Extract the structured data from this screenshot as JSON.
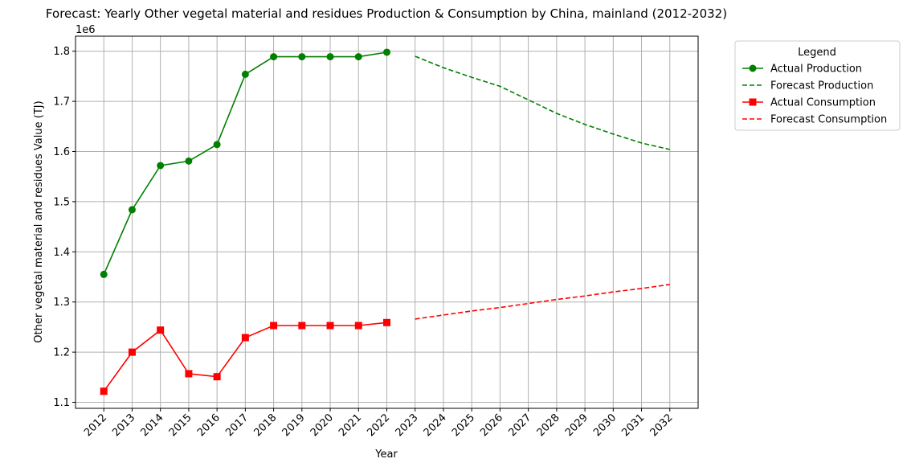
{
  "chart_data": {
    "type": "line",
    "title": "Forecast: Yearly Other vegetal material and residues Production & Consumption by China, mainland (2012-2032)",
    "xlabel": "Year",
    "ylabel": "Other vegetal material and residues Value (TJ)",
    "y_offset_label": "1e6",
    "xlim": [
      2011,
      2033
    ],
    "ylim": [
      1088000,
      1830000
    ],
    "x_ticks": [
      "2012",
      "2013",
      "2014",
      "2015",
      "2016",
      "2017",
      "2018",
      "2019",
      "2020",
      "2021",
      "2022",
      "2023",
      "2024",
      "2025",
      "2026",
      "2027",
      "2028",
      "2029",
      "2030",
      "2031",
      "2032"
    ],
    "y_ticks": [
      {
        "value": 1100000,
        "label": "1.1"
      },
      {
        "value": 1200000,
        "label": "1.2"
      },
      {
        "value": 1300000,
        "label": "1.3"
      },
      {
        "value": 1400000,
        "label": "1.4"
      },
      {
        "value": 1500000,
        "label": "1.5"
      },
      {
        "value": 1600000,
        "label": "1.6"
      },
      {
        "value": 1700000,
        "label": "1.7"
      },
      {
        "value": 1800000,
        "label": "1.8"
      }
    ],
    "grid": true,
    "legend": {
      "title": "Legend",
      "placement": "outside-top-right"
    },
    "series": [
      {
        "name": "Actual Production",
        "color": "#008000",
        "style": "solid",
        "marker": "circle",
        "x": [
          2012,
          2013,
          2014,
          2015,
          2016,
          2017,
          2018,
          2019,
          2020,
          2021,
          2022
        ],
        "y": [
          1355000,
          1484000,
          1572000,
          1581000,
          1614000,
          1754000,
          1789000,
          1789000,
          1789000,
          1789000,
          1798000
        ]
      },
      {
        "name": "Forecast Production",
        "color": "#008000",
        "style": "dashed",
        "marker": "none",
        "x": [
          2023,
          2024,
          2025,
          2026,
          2027,
          2028,
          2029,
          2030,
          2031,
          2032
        ],
        "y": [
          1790000,
          1767000,
          1748000,
          1730000,
          1703000,
          1676000,
          1654000,
          1635000,
          1617000,
          1604000
        ]
      },
      {
        "name": "Actual Consumption",
        "color": "#ff0000",
        "style": "solid",
        "marker": "square",
        "x": [
          2012,
          2013,
          2014,
          2015,
          2016,
          2017,
          2018,
          2019,
          2020,
          2021,
          2022
        ],
        "y": [
          1122000,
          1200000,
          1244000,
          1157000,
          1151000,
          1229000,
          1253000,
          1253000,
          1253000,
          1253000,
          1259000
        ]
      },
      {
        "name": "Forecast Consumption",
        "color": "#ff0000",
        "style": "dashed",
        "marker": "none",
        "x": [
          2023,
          2024,
          2025,
          2026,
          2027,
          2028,
          2029,
          2030,
          2031,
          2032
        ],
        "y": [
          1266000,
          1274000,
          1282000,
          1289000,
          1297000,
          1305000,
          1312000,
          1320000,
          1327000,
          1335000
        ]
      }
    ]
  }
}
